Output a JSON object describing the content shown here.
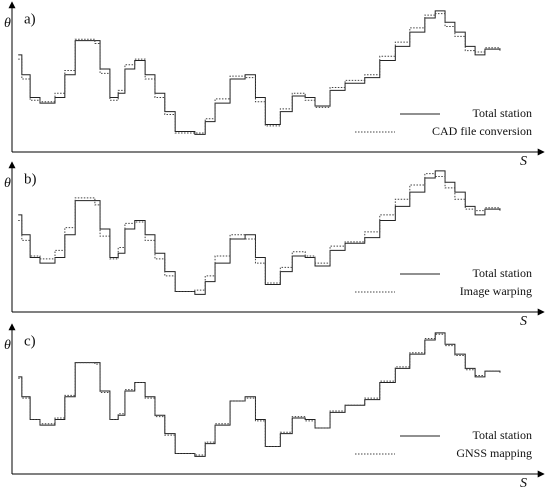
{
  "chart_data": [
    {
      "type": "line",
      "label": "a)",
      "y_label": "θ",
      "x_label": "S",
      "step": true,
      "legend": "lower right",
      "xlim": [
        0,
        100
      ],
      "ylim": [
        0,
        100
      ],
      "x": [
        1.2,
        1.9,
        3.5,
        5.4,
        8.3,
        10.2,
        12.2,
        16,
        17,
        18.9,
        20.5,
        21.8,
        23.7,
        25.7,
        27.6,
        29.5,
        31.5,
        35.3,
        37.3,
        39.2,
        42.1,
        45,
        47,
        48.9,
        51.8,
        54.1,
        56.6,
        58.5,
        61.4,
        64.3,
        68.1,
        71,
        74,
        76.8,
        79.7,
        81.7,
        83.6,
        85.5,
        87.5,
        89.4,
        91.3,
        94.2
      ],
      "series": [
        {
          "name": "Total station",
          "color": "#222222",
          "style": "solid",
          "values": [
            67,
            53,
            37,
            33,
            37,
            53,
            77,
            77,
            57,
            37,
            40,
            57,
            63,
            53,
            40,
            27,
            13,
            11,
            20,
            33,
            50,
            53,
            37,
            18,
            27,
            38,
            37,
            31,
            42,
            47,
            51,
            63,
            73,
            83,
            93,
            98,
            90,
            83,
            73,
            67,
            71,
            70
          ]
        },
        {
          "name": "CAD file conversion",
          "color": "#444444",
          "style": "dotted",
          "values": [
            64,
            50,
            35,
            34,
            40,
            56,
            78,
            75,
            54,
            35,
            42,
            60,
            64,
            50,
            37,
            25,
            12,
            12,
            22,
            36,
            52,
            51,
            34,
            17,
            29,
            40,
            35,
            30,
            44,
            49,
            53,
            66,
            76,
            86,
            95,
            96,
            87,
            80,
            70,
            69,
            72,
            70
          ]
        }
      ]
    },
    {
      "type": "line",
      "label": "b)",
      "y_label": "θ",
      "x_label": "S",
      "step": true,
      "legend": "lower right",
      "xlim": [
        0,
        100
      ],
      "ylim": [
        0,
        100
      ],
      "x": [
        1.2,
        1.9,
        3.5,
        5.4,
        8.3,
        10.2,
        12.2,
        16,
        17,
        18.9,
        20.5,
        21.8,
        23.7,
        25.7,
        27.6,
        29.5,
        31.5,
        35.3,
        37.3,
        39.2,
        42.1,
        45,
        47,
        48.9,
        51.8,
        54.1,
        56.6,
        58.5,
        61.4,
        64.3,
        68.1,
        71,
        74,
        76.8,
        79.7,
        81.7,
        83.6,
        85.5,
        87.5,
        89.4,
        91.3,
        94.2
      ],
      "series": [
        {
          "name": "Total station",
          "color": "#222222",
          "style": "solid",
          "values": [
            67,
            53,
            37,
            33,
            37,
            53,
            77,
            77,
            57,
            37,
            40,
            57,
            63,
            53,
            40,
            27,
            13,
            11,
            20,
            33,
            50,
            53,
            37,
            18,
            27,
            38,
            37,
            31,
            42,
            47,
            51,
            63,
            73,
            83,
            93,
            98,
            90,
            83,
            73,
            67,
            71,
            70
          ]
        },
        {
          "name": "Image warping",
          "color": "#444444",
          "style": "dotted",
          "values": [
            63,
            49,
            38,
            36,
            42,
            58,
            79,
            74,
            52,
            36,
            44,
            61,
            62,
            49,
            36,
            24,
            13,
            14,
            24,
            38,
            53,
            50,
            33,
            19,
            30,
            41,
            38,
            33,
            45,
            48,
            55,
            67,
            78,
            88,
            96,
            94,
            86,
            78,
            71,
            70,
            72,
            71
          ]
        }
      ]
    },
    {
      "type": "line",
      "label": "c)",
      "y_label": "θ",
      "x_label": "S",
      "step": true,
      "legend": "lower right",
      "xlim": [
        0,
        100
      ],
      "ylim": [
        0,
        100
      ],
      "x": [
        1.2,
        1.9,
        3.5,
        5.4,
        8.3,
        10.2,
        12.2,
        16,
        17,
        18.9,
        20.5,
        21.8,
        23.7,
        25.7,
        27.6,
        29.5,
        31.5,
        35.3,
        37.3,
        39.2,
        42.1,
        45,
        47,
        48.9,
        51.8,
        54.1,
        56.6,
        58.5,
        61.4,
        64.3,
        68.1,
        71,
        74,
        76.8,
        79.7,
        81.7,
        83.6,
        85.5,
        87.5,
        89.4,
        91.3,
        94.2
      ],
      "series": [
        {
          "name": "Total station",
          "color": "#222222",
          "style": "solid",
          "values": [
            67,
            53,
            37,
            33,
            37,
            53,
            77,
            77,
            57,
            37,
            40,
            57,
            63,
            53,
            40,
            27,
            13,
            11,
            20,
            33,
            50,
            53,
            37,
            18,
            27,
            38,
            37,
            31,
            42,
            47,
            51,
            63,
            73,
            83,
            93,
            98,
            90,
            83,
            73,
            67,
            71,
            70
          ]
        },
        {
          "name": "GNSS mapping",
          "color": "#444444",
          "style": "dotted",
          "values": [
            66,
            52,
            37,
            34,
            38,
            54,
            77,
            76,
            56,
            37,
            41,
            58,
            63,
            52,
            39,
            26,
            13,
            12,
            21,
            34,
            50,
            52,
            36,
            18,
            28,
            39,
            36,
            31,
            43,
            47,
            52,
            64,
            74,
            84,
            94,
            97,
            89,
            82,
            72,
            68,
            71,
            70
          ]
        }
      ]
    }
  ]
}
